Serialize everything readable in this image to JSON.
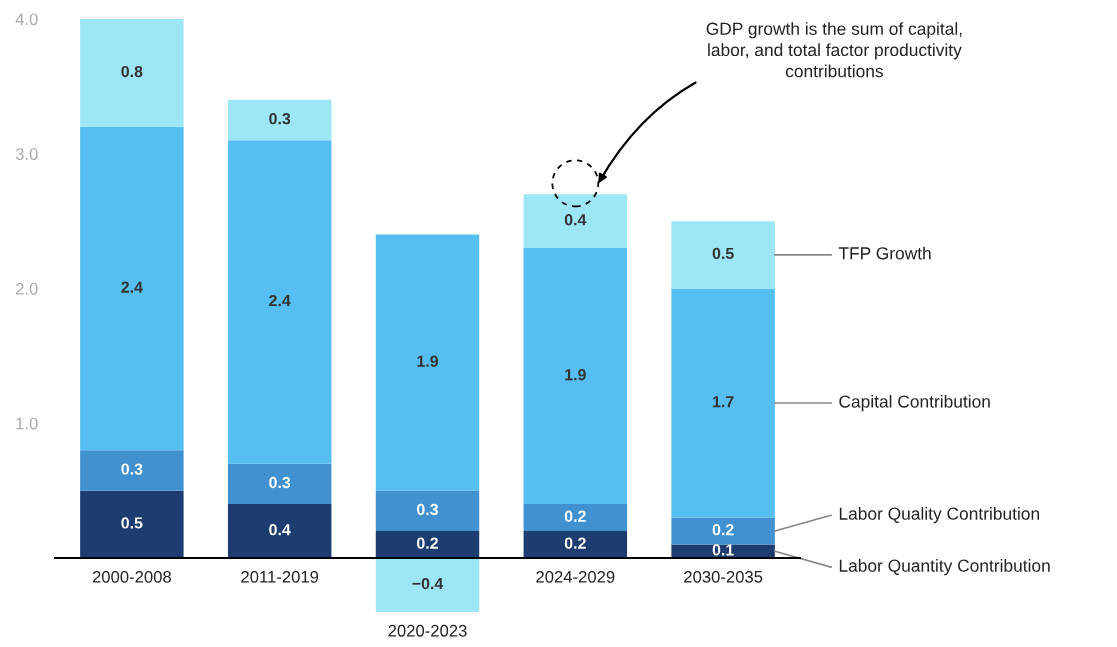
{
  "chart_data": {
    "type": "bar",
    "stacked": true,
    "data_labels": true,
    "categories": [
      "2000-2008",
      "2011-2019",
      "2020-2023",
      "2024-2029",
      "2030-2035"
    ],
    "series": [
      {
        "name": "Labor Quantity Contribution",
        "color": "#1d3d70",
        "values": [
          0.5,
          0.4,
          0.2,
          0.2,
          0.1
        ]
      },
      {
        "name": "Labor Quality Contribution",
        "color": "#4191d0",
        "values": [
          0.3,
          0.3,
          0.3,
          0.2,
          0.2
        ]
      },
      {
        "name": "Capital Contribution",
        "color": "#56bef0",
        "values": [
          2.4,
          2.4,
          1.9,
          1.9,
          1.7
        ]
      },
      {
        "name": "TFP Growth",
        "color": "#9de6f5",
        "values": [
          0.8,
          0.3,
          -0.4,
          0.4,
          0.5
        ]
      }
    ],
    "ylim": [
      -0.4,
      4.0
    ],
    "yticks": [
      {
        "value": 1,
        "label": "1.0"
      },
      {
        "value": 2,
        "label": "2.0"
      },
      {
        "value": 3,
        "label": "3.0"
      },
      {
        "value": 4,
        "label": "4.0"
      }
    ],
    "annotations": [
      "GDP growth is the sum of capital,\nlabor, and total factor productivity\ncontributions"
    ],
    "grid": false
  }
}
